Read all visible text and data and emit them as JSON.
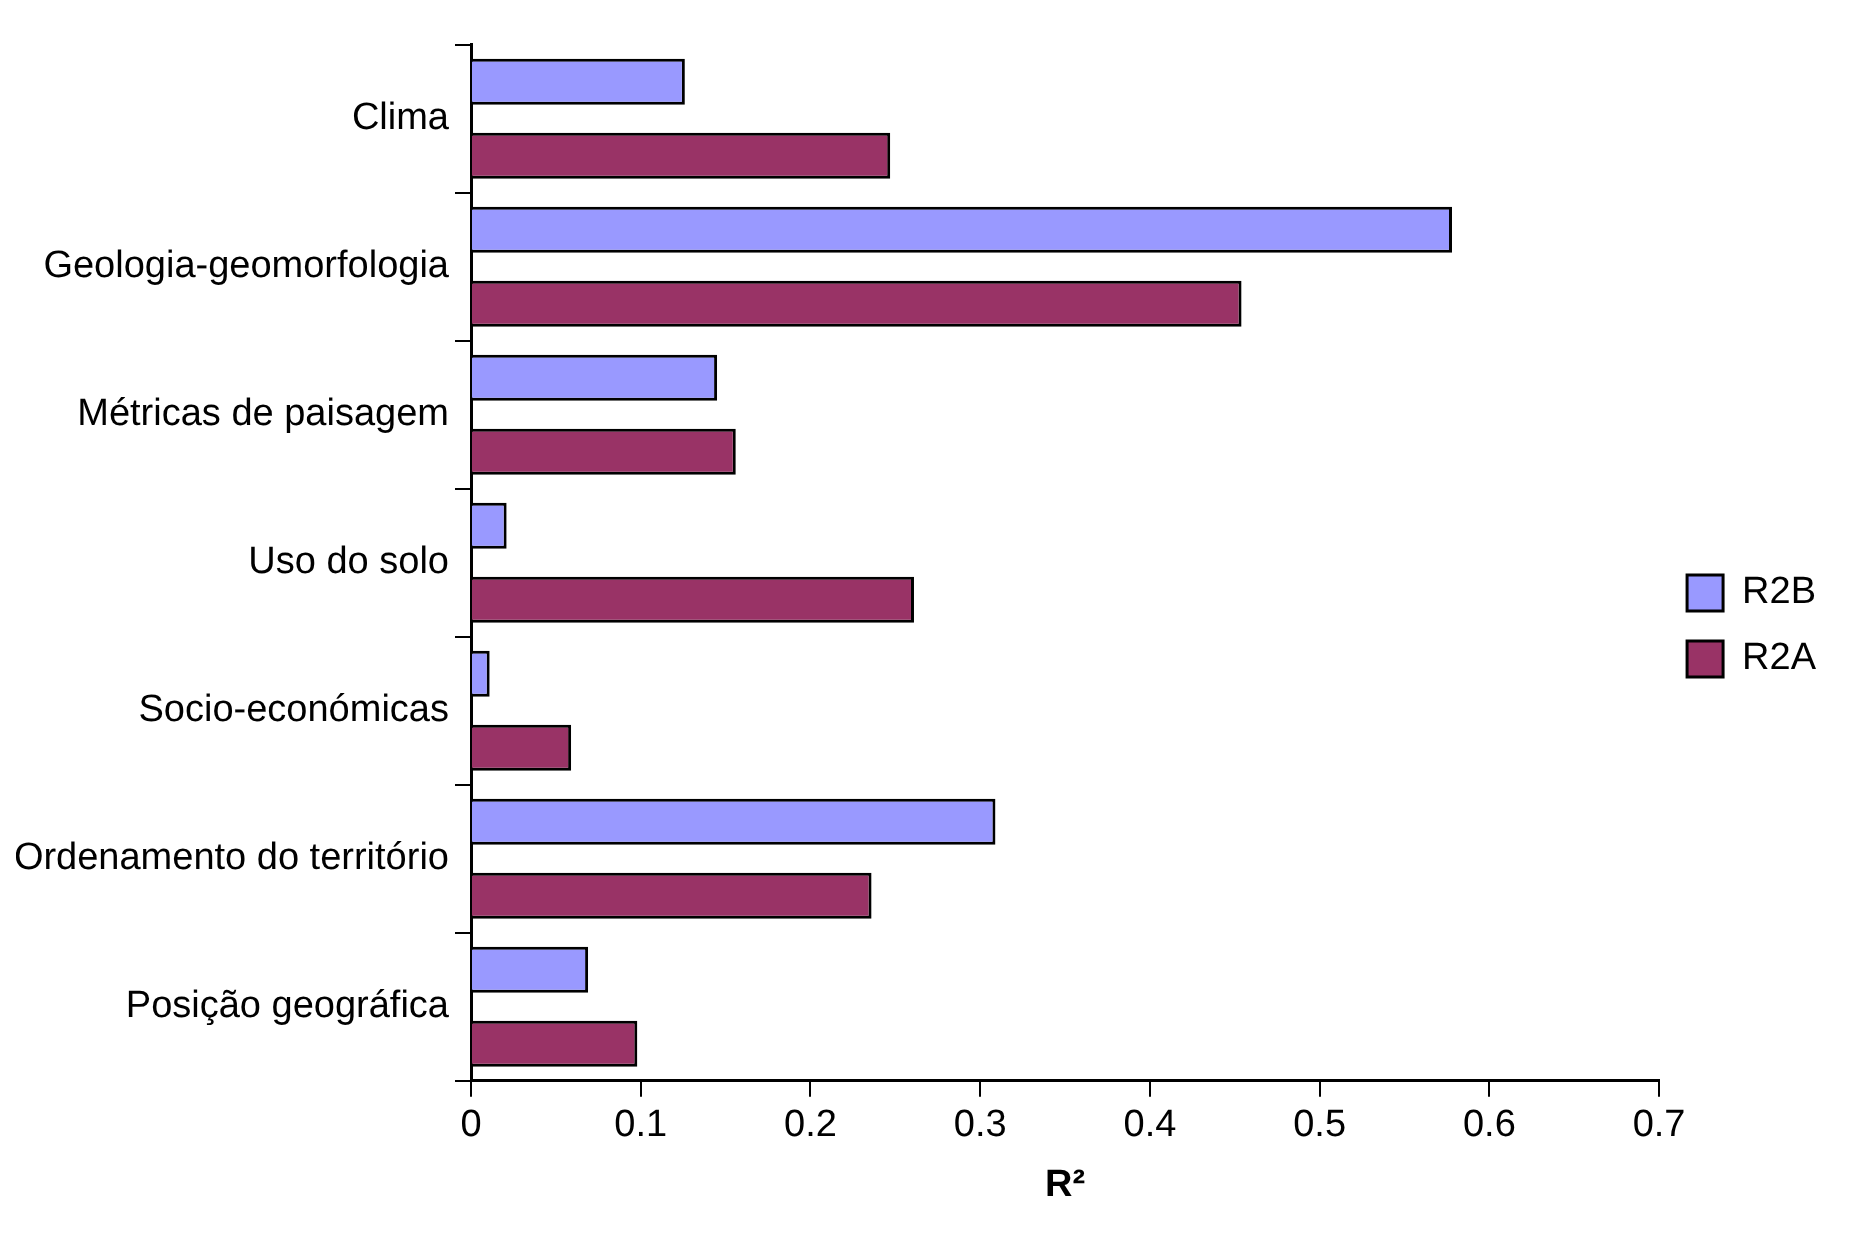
{
  "chart_data": {
    "type": "bar",
    "orientation": "horizontal",
    "xlabel": "R²",
    "categories": [
      "Clima",
      "Geologia-geomorfologia",
      "Métricas de paisagem",
      "Uso do solo",
      "Socio-económicas",
      "Ordenamento do território",
      "Posição geográfica"
    ],
    "series": [
      {
        "name": "R2B",
        "color": "#9999ff",
        "values": [
          0.126,
          0.578,
          0.145,
          0.021,
          0.011,
          0.309,
          0.069
        ]
      },
      {
        "name": "R2A",
        "color": "#993366",
        "values": [
          0.247,
          0.454,
          0.156,
          0.261,
          0.059,
          0.236,
          0.098
        ]
      }
    ],
    "xlim": [
      0,
      0.7
    ],
    "xticks": [
      0,
      0.1,
      0.2,
      0.3,
      0.4,
      0.5,
      0.6,
      0.7
    ],
    "grid": false,
    "legend": "right"
  }
}
